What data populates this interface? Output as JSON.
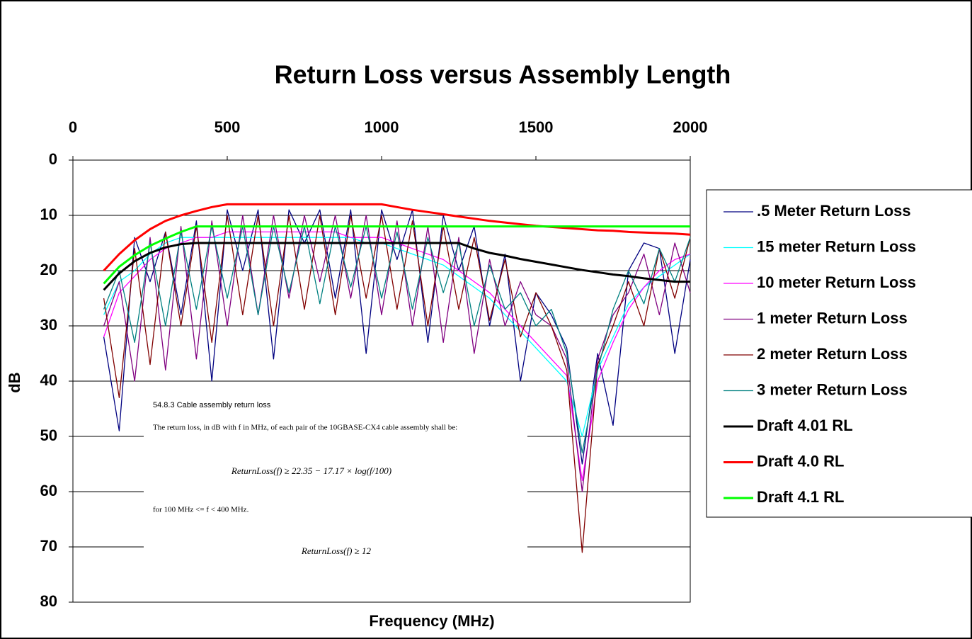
{
  "chart_data": {
    "type": "line",
    "title": "Return Loss versus Assembly Length",
    "x_label": "Frequency (MHz)",
    "y_label": "dB",
    "xlim": [
      0,
      2000
    ],
    "xticks": [
      0,
      500,
      1000,
      1500,
      2000
    ],
    "ylim": [
      0,
      80
    ],
    "yticks": [
      0,
      10,
      20,
      30,
      40,
      50,
      60,
      70,
      80
    ],
    "y_inverted": true,
    "x_axis_position": "top",
    "grid": true,
    "legend": "right",
    "x": [
      100,
      150,
      200,
      250,
      300,
      350,
      400,
      450,
      500,
      550,
      600,
      650,
      700,
      750,
      800,
      850,
      900,
      950,
      1000,
      1050,
      1100,
      1150,
      1200,
      1250,
      1300,
      1350,
      1400,
      1450,
      1500,
      1550,
      1600,
      1650,
      1700,
      1750,
      1800,
      1850,
      1900,
      1950,
      2000
    ],
    "series": [
      {
        "name": ".5 Meter Return Loss",
        "color": "#000080",
        "width": 1.3,
        "values": [
          32,
          49,
          14,
          22,
          13,
          28,
          11,
          40,
          9,
          20,
          9,
          36,
          9,
          15,
          9,
          25,
          9,
          35,
          9,
          18,
          9,
          33,
          10,
          20,
          12,
          30,
          17,
          40,
          24,
          28,
          34,
          55,
          35,
          48,
          20,
          15,
          16,
          35,
          18
        ]
      },
      {
        "name": "15 meter Return Loss",
        "color": "#00ffff",
        "width": 1.3,
        "values": [
          28,
          22,
          20,
          17,
          15,
          14,
          14,
          14,
          14,
          14,
          14,
          14,
          14,
          14,
          14,
          14,
          14,
          15,
          15,
          16,
          17,
          18,
          19,
          21,
          23,
          25,
          28,
          31,
          34,
          37,
          40,
          50,
          38,
          32,
          26,
          23,
          21,
          19,
          17
        ]
      },
      {
        "name": "10 meter Return Loss",
        "color": "#ff00ff",
        "width": 1.3,
        "values": [
          32,
          24,
          21,
          18,
          16,
          15,
          14,
          14,
          13,
          13,
          13,
          13,
          13,
          13,
          13,
          13,
          14,
          14,
          14,
          15,
          16,
          17,
          18,
          20,
          22,
          24,
          27,
          30,
          33,
          36,
          39,
          58,
          40,
          33,
          27,
          23,
          20,
          18,
          17
        ]
      },
      {
        "name": "1 meter Return Loss",
        "color": "#800080",
        "width": 1.3,
        "values": [
          30,
          22,
          40,
          14,
          38,
          12,
          36,
          11,
          30,
          10,
          28,
          10,
          25,
          10,
          22,
          10,
          25,
          10,
          28,
          11,
          30,
          12,
          33,
          14,
          35,
          18,
          30,
          22,
          28,
          30,
          36,
          60,
          36,
          28,
          24,
          17,
          28,
          15,
          24
        ]
      },
      {
        "name": "2 meter Return Loss",
        "color": "#800000",
        "width": 1.3,
        "values": [
          25,
          43,
          16,
          37,
          13,
          30,
          12,
          33,
          10,
          28,
          10,
          30,
          10,
          27,
          10,
          28,
          10,
          25,
          10,
          27,
          11,
          30,
          12,
          27,
          14,
          29,
          18,
          32,
          24,
          30,
          38,
          71,
          37,
          30,
          22,
          30,
          16,
          25,
          14
        ]
      },
      {
        "name": "3 meter Return Loss",
        "color": "#008080",
        "width": 1.3,
        "values": [
          27,
          20,
          33,
          15,
          30,
          13,
          27,
          12,
          25,
          12,
          28,
          12,
          24,
          12,
          26,
          12,
          23,
          12,
          25,
          13,
          27,
          14,
          24,
          15,
          30,
          19,
          27,
          24,
          30,
          27,
          35,
          53,
          38,
          27,
          20,
          26,
          16,
          22,
          14
        ]
      },
      {
        "name": "Draft 4.01 RL",
        "color": "#000000",
        "width": 3,
        "values": [
          23.5,
          20.5,
          18.3,
          16.8,
          15.8,
          15.2,
          15,
          15,
          15,
          15,
          15,
          15,
          15,
          15,
          15,
          15,
          15,
          15,
          15,
          15,
          15,
          15,
          15,
          15,
          16,
          16.8,
          17.3,
          17.9,
          18.4,
          18.9,
          19.4,
          19.9,
          20.3,
          20.7,
          21,
          21.4,
          21.7,
          22,
          22
        ]
      },
      {
        "name": "Draft 4.0 RL",
        "color": "#ff0000",
        "width": 3,
        "values": [
          20,
          17,
          14.5,
          12.5,
          11,
          10,
          9.2,
          8.5,
          8,
          8,
          8,
          8,
          8,
          8,
          8,
          8,
          8,
          8,
          8,
          8.5,
          9,
          9.4,
          9.8,
          10.2,
          10.6,
          11,
          11.3,
          11.6,
          11.9,
          12.1,
          12.3,
          12.5,
          12.7,
          12.8,
          13,
          13.1,
          13.2,
          13.3,
          13.5
        ]
      },
      {
        "name": "Draft 4.1 RL",
        "color": "#00ff00",
        "width": 3,
        "values": [
          22.35,
          19.3,
          17.2,
          15.5,
          14.2,
          13,
          12,
          12,
          12,
          12,
          12,
          12,
          12,
          12,
          12,
          12,
          12,
          12,
          12,
          12,
          12,
          12,
          12,
          12,
          12,
          12,
          12,
          12,
          12,
          12,
          12,
          12,
          12,
          12,
          12,
          12,
          12,
          12,
          12
        ]
      }
    ],
    "inset": {
      "heading": "54.8.3 Cable assembly return loss",
      "text": "The return loss, in dB with f in MHz, of each pair of the 10GBASE-CX4 cable assembly shall be:",
      "formula1": "ReturnLoss(f) ≥ 22.35 − 17.17 × log(f/100)",
      "condition": "for 100 MHz <= f < 400 MHz.",
      "formula2": "ReturnLoss(f) ≥ 12"
    }
  }
}
